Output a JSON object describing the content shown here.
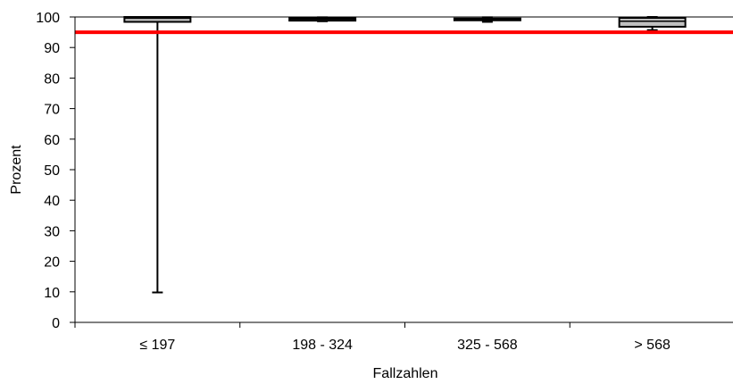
{
  "chart_data": {
    "type": "boxplot",
    "xlabel": "Fallzahlen",
    "ylabel": "Prozent",
    "categories": [
      "≤ 197",
      "198 - 324",
      "325 - 568",
      "> 568"
    ],
    "y_ticks": [
      "0",
      "10",
      "20",
      "30",
      "40",
      "50",
      "60",
      "70",
      "80",
      "90",
      "100"
    ],
    "ylim": [
      0,
      100
    ],
    "boxes": [
      {
        "category": "≤ 197",
        "min": 9.8,
        "q1": 98.4,
        "median": 99.6,
        "q3": 100.0,
        "max": 100.0
      },
      {
        "category": "198 - 324",
        "min": 98.6,
        "q1": 98.8,
        "median": 99.3,
        "q3": 99.6,
        "max": 99.9
      },
      {
        "category": "325 - 568",
        "min": 98.4,
        "q1": 98.9,
        "median": 99.3,
        "q3": 99.5,
        "max": 99.9
      },
      {
        "category": "> 568",
        "min": 95.7,
        "q1": 96.8,
        "median": 98.6,
        "q3": 99.7,
        "max": 100.0
      }
    ],
    "reference_line": {
      "value": 95,
      "color": "#ff0000"
    },
    "box_fill": "#c0c0c0",
    "grid": false
  }
}
